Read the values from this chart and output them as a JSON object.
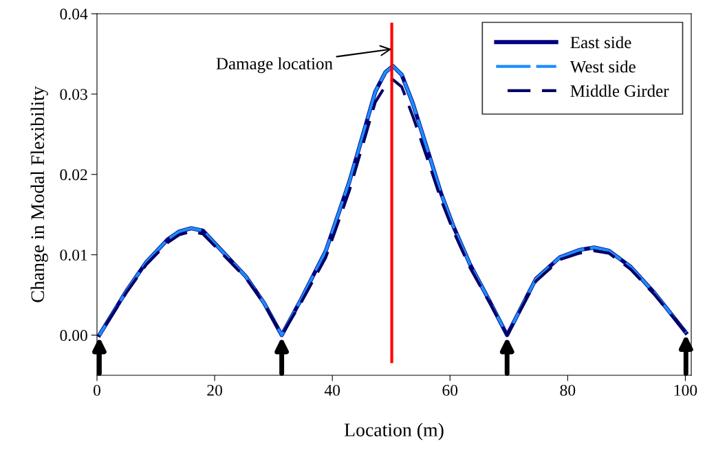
{
  "chart_data": {
    "type": "line",
    "xlabel": "Location (m)",
    "ylabel": "Change in Modal Flexibility",
    "xlim": [
      0,
      101
    ],
    "xticks": [
      0,
      20,
      40,
      60,
      80,
      100
    ],
    "ylim": [
      -0.005,
      0.04
    ],
    "yticks": [
      {
        "value": 0,
        "label": "0.00"
      },
      {
        "value": 0.01,
        "label": "0.01"
      },
      {
        "value": 0.02,
        "label": "0.02"
      },
      {
        "value": 0.03,
        "label": "0.03"
      },
      {
        "value": 0.04,
        "label": "0.04"
      }
    ],
    "grid": false,
    "legend": "top right",
    "marker": "none",
    "x": [
      0.4,
      5.1,
      8.4,
      12.0,
      14.0,
      16.0,
      18.0,
      21.2,
      25.3,
      28.4,
      31.4,
      34.8,
      38.9,
      42.9,
      45.7,
      47.3,
      49.0,
      50.3,
      51.8,
      53.7,
      56.5,
      58.5,
      60.6,
      63.4,
      66.6,
      69.7,
      74.6,
      78.7,
      82.0,
      84.5,
      87.0,
      90.7,
      94.8,
      100.1
    ],
    "series": [
      {
        "name": "East side",
        "color": "#000080",
        "line_style": "solid",
        "values": [
          0,
          0.0056,
          0.0091,
          0.0119,
          0.0129,
          0.0133,
          0.013,
          0.0105,
          0.0073,
          0.004,
          0,
          0.0046,
          0.0105,
          0.0191,
          0.0262,
          0.0303,
          0.0327,
          0.0335,
          0.0324,
          0.0288,
          0.0223,
          0.0176,
          0.0135,
          0.0088,
          0.0044,
          0,
          0.007,
          0.0097,
          0.0106,
          0.0109,
          0.0105,
          0.0085,
          0.0052,
          0.0003
        ]
      },
      {
        "name": "West side",
        "color": "#1e8cff",
        "line_style": "dashed",
        "values": [
          0,
          0.0056,
          0.0091,
          0.0119,
          0.0129,
          0.0133,
          0.013,
          0.0105,
          0.0073,
          0.004,
          0,
          0.0046,
          0.0105,
          0.0191,
          0.0262,
          0.0303,
          0.0327,
          0.0335,
          0.0324,
          0.0288,
          0.0223,
          0.0176,
          0.0135,
          0.0088,
          0.0044,
          0,
          0.007,
          0.0097,
          0.0106,
          0.0109,
          0.0105,
          0.0085,
          0.0052,
          0.0003
        ]
      },
      {
        "name": "Middle Girder",
        "color": "#000066",
        "line_style": "dashed",
        "values": [
          0,
          0.0054,
          0.0088,
          0.0115,
          0.0125,
          0.0129,
          0.0126,
          0.0102,
          0.0071,
          0.0039,
          0,
          0.0042,
          0.0097,
          0.018,
          0.025,
          0.029,
          0.031,
          0.0318,
          0.0309,
          0.0272,
          0.0212,
          0.0168,
          0.0129,
          0.0084,
          0.0042,
          0,
          0.0067,
          0.0094,
          0.0102,
          0.0105,
          0.0102,
          0.0082,
          0.005,
          0.0003
        ]
      },
      {
        "color": "#ff0000",
        "line_style": "solid",
        "x": [
          50.1,
          50.1
        ],
        "values": [
          -0.0033,
          0.0387
        ]
      }
    ],
    "annotations": [
      {
        "text": "Damage location",
        "x": 50.1,
        "y": 0.0356
      }
    ]
  }
}
